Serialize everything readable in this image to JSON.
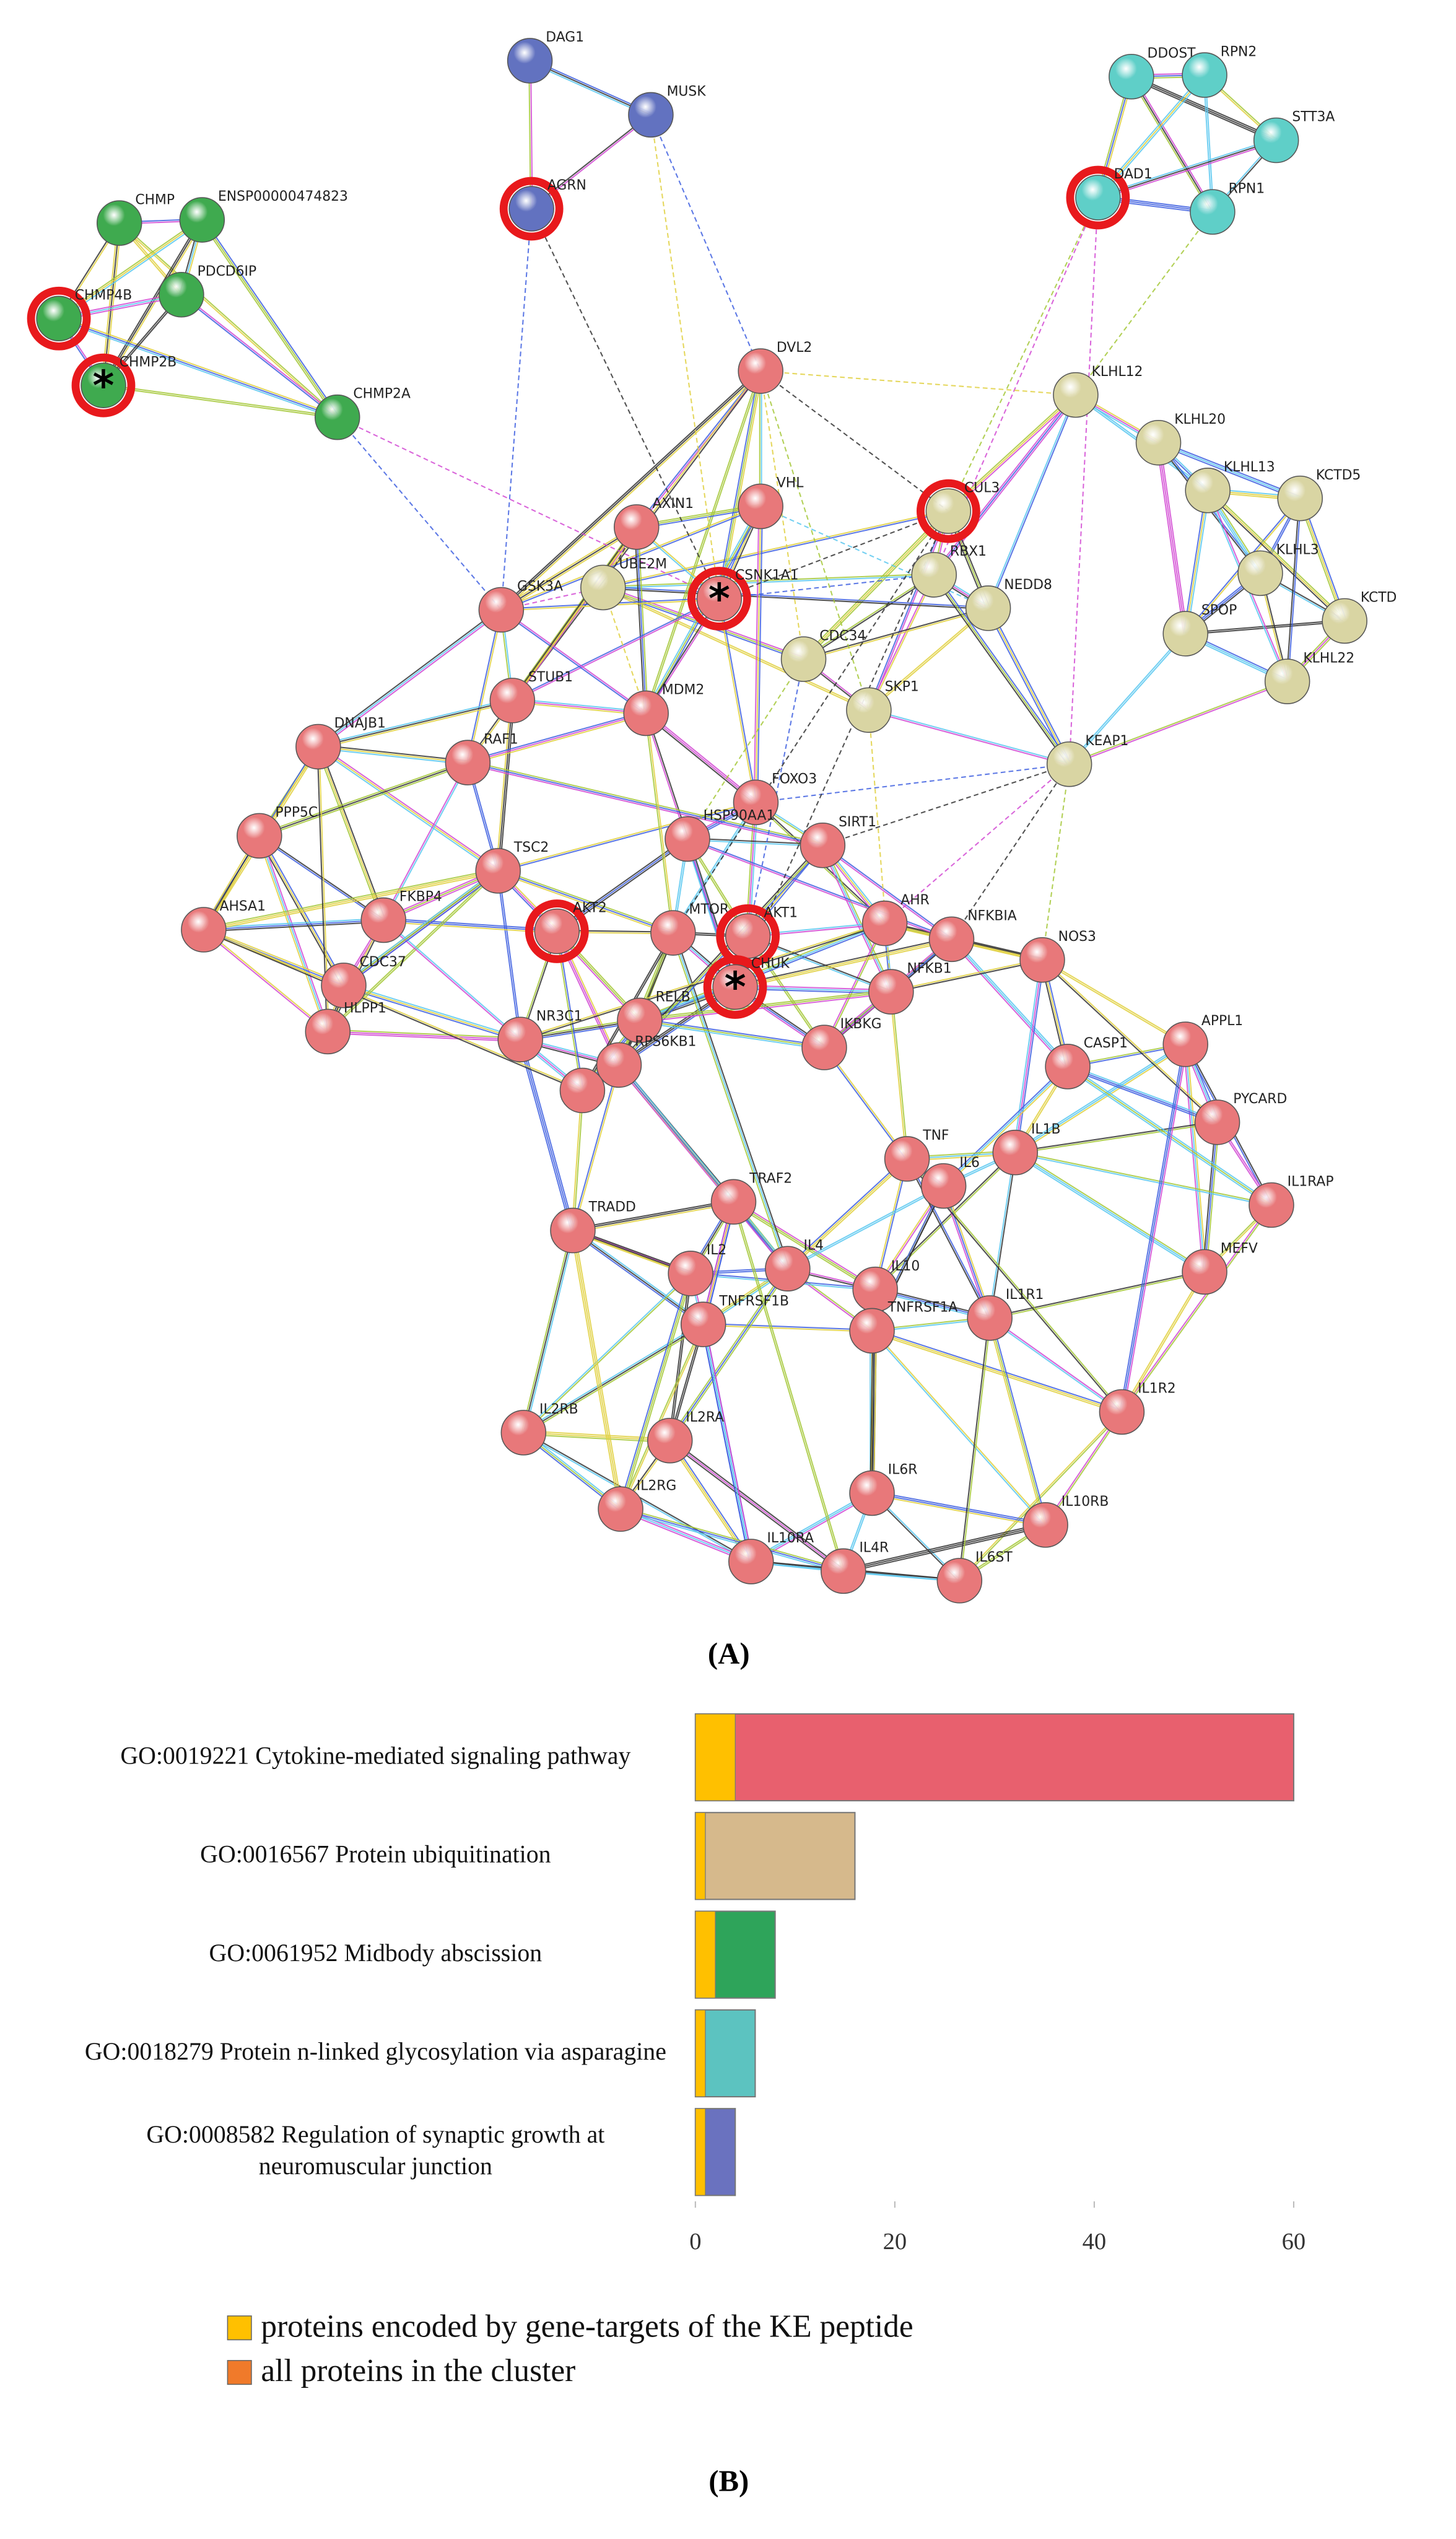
{
  "network": {
    "panel_label": "(A)",
    "clusters": [
      {
        "color": "#3faa4f",
        "nodes": [
          {
            "label": "CHMP"
          },
          {
            "label": "ENSP00000474823"
          },
          {
            "label": "CHMP4B",
            "highlighted": true
          },
          {
            "label": "PDCD6IP"
          },
          {
            "label": "CHMP2B",
            "highlighted": true,
            "marker": "*"
          },
          {
            "label": "CHMP2A"
          }
        ]
      },
      {
        "color": "#6272c0",
        "nodes": [
          {
            "label": "DAG1"
          },
          {
            "label": "MUSK"
          },
          {
            "label": "AGRN",
            "highlighted": true
          }
        ]
      },
      {
        "color": "#5fcfc8",
        "nodes": [
          {
            "label": "DDOST"
          },
          {
            "label": "RPN2"
          },
          {
            "label": "STT3A"
          },
          {
            "label": "DAD1",
            "highlighted": true
          },
          {
            "label": "RPN1"
          }
        ]
      },
      {
        "color": "#d9d5a3",
        "nodes": [
          {
            "label": "KLHL12"
          },
          {
            "label": "KLHL20"
          },
          {
            "label": "KLHL13"
          },
          {
            "label": "KCTD5"
          },
          {
            "label": "CUL3",
            "highlighted": true
          },
          {
            "label": "KLHL3"
          },
          {
            "label": "KCTD"
          },
          {
            "label": "RBX1"
          },
          {
            "label": "NEDD8"
          },
          {
            "label": "SPOP"
          },
          {
            "label": "KLHL22"
          },
          {
            "label": "UBE2M"
          },
          {
            "label": "CDC34"
          },
          {
            "label": "SKP1"
          },
          {
            "label": "KEAP1"
          }
        ]
      },
      {
        "color": "#e8787a",
        "nodes": [
          {
            "label": "DVL2"
          },
          {
            "label": "VHL"
          },
          {
            "label": "AXIN1"
          },
          {
            "label": "CSNK1A1",
            "highlighted": true,
            "marker": "*"
          },
          {
            "label": "GSK3A"
          },
          {
            "label": "STUB1"
          },
          {
            "label": "MDM2"
          },
          {
            "label": "DNAJB1"
          },
          {
            "label": "RAF1"
          },
          {
            "label": "FOXO3"
          },
          {
            "label": "PPP5C"
          },
          {
            "label": "HSP90AA1"
          },
          {
            "label": "SIRT1"
          },
          {
            "label": "TSC2"
          },
          {
            "label": "AHSA1"
          },
          {
            "label": "FKBP4"
          },
          {
            "label": "AKT2",
            "highlighted": true
          },
          {
            "label": "MTOR"
          },
          {
            "label": "AKT1",
            "highlighted": true
          },
          {
            "label": "AHR"
          },
          {
            "label": "NFKBIA"
          },
          {
            "label": "NOS3"
          },
          {
            "label": "CDC37"
          },
          {
            "label": "CHUK",
            "highlighted": true,
            "marker": "*"
          },
          {
            "label": "NFKB1"
          },
          {
            "label": "HLPP1"
          },
          {
            "label": "RELB"
          },
          {
            "label": "NR3C1"
          },
          {
            "label": "RPS6KB1"
          },
          {
            "label": "IKBKG"
          },
          {
            "label": "APPL1"
          },
          {
            "label": "CASP1"
          },
          {
            "label": null
          },
          {
            "label": "PYCARD"
          },
          {
            "label": "TNF"
          },
          {
            "label": "IL1B"
          },
          {
            "label": "IL6"
          },
          {
            "label": "TRAF2"
          },
          {
            "label": "TRADD"
          },
          {
            "label": "IL1RAP"
          },
          {
            "label": "MEFV"
          },
          {
            "label": "IL4"
          },
          {
            "label": "IL2"
          },
          {
            "label": "IL10"
          },
          {
            "label": "IL1R1"
          },
          {
            "label": "TNFRSF1B"
          },
          {
            "label": "TNFRSF1A"
          },
          {
            "label": "IL1R2"
          },
          {
            "label": "IL2RB"
          },
          {
            "label": "IL2RA"
          },
          {
            "label": "IL6R"
          },
          {
            "label": "IL10RB"
          },
          {
            "label": "IL2RG"
          },
          {
            "label": "IL10RA"
          },
          {
            "label": "IL4R"
          },
          {
            "label": "IL6ST"
          }
        ]
      }
    ]
  },
  "chart_data": {
    "type": "bar",
    "orientation": "horizontal",
    "panel_label": "(B)",
    "categories": [
      "GO:0019221 Cytokine-mediated signaling pathway",
      "GO:0016567 Protein ubiquitination",
      "GO:0061952 Midbody abscission",
      "GO:0018279 Protein n-linked glycosylation via asparagine",
      "GO:0008582 Regulation of synaptic growth at neuromuscular junction"
    ],
    "series": [
      {
        "name": "proteins encoded by gene-targets of the KE peptide",
        "color": "#ffc000",
        "values": [
          4,
          1,
          2,
          1,
          1
        ]
      },
      {
        "name": "all proteins in the cluster",
        "color": "#f07a2a",
        "values": [
          60,
          16,
          8,
          6,
          4
        ],
        "bar_colors": [
          "#e8606e",
          "#d6b98c",
          "#2ea45a",
          "#5cc3c0",
          "#6a72bf"
        ]
      }
    ],
    "xlim": [
      0,
      60
    ],
    "xticks": [
      0,
      20,
      40,
      60
    ]
  }
}
